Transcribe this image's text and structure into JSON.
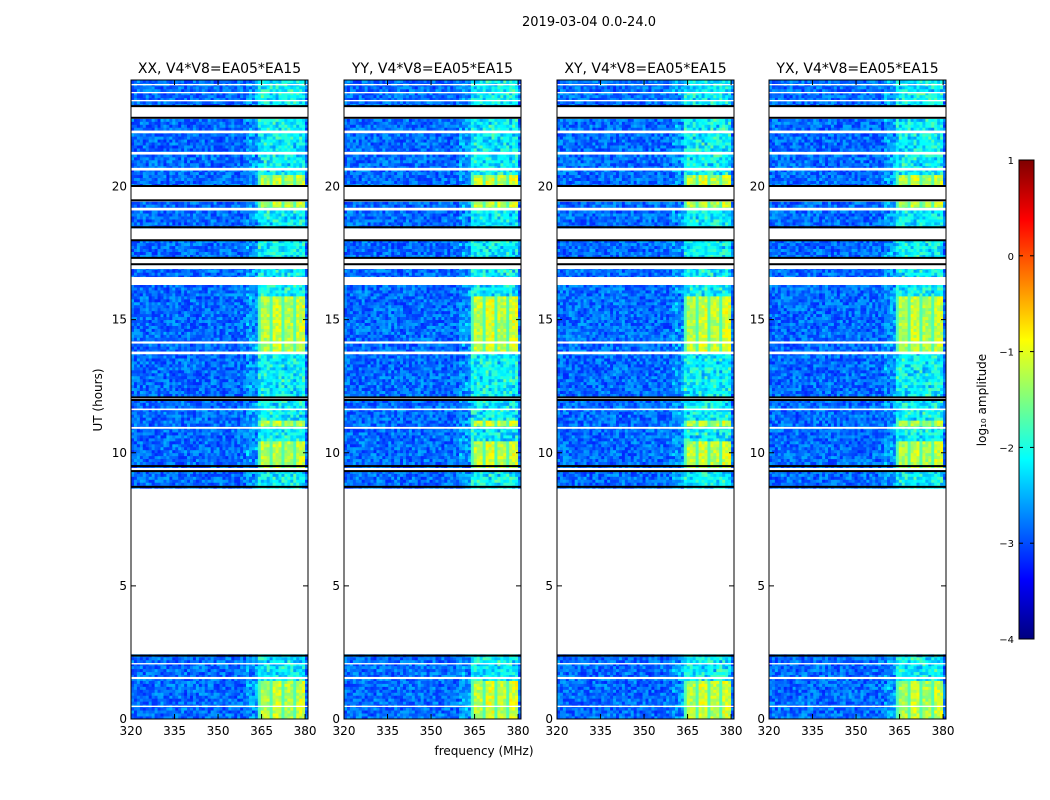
{
  "figure_title": "2019-03-04 0.0-24.0",
  "chart_data": {
    "type": "heatmap",
    "title": "2019-03-04 0.0-24.0",
    "xlabel": "frequency (MHz)",
    "ylabel": "UT (hours)",
    "xlim": [
      320,
      381
    ],
    "ylim": [
      0,
      24
    ],
    "xticks": [
      320,
      335,
      350,
      365,
      380
    ],
    "yticks": [
      0,
      5,
      10,
      15,
      20
    ],
    "panels": [
      {
        "title": "XX, V4*V8=EA05*EA15",
        "strength": 0.85
      },
      {
        "title": "YY, V4*V8=EA05*EA15",
        "strength": 1.0
      },
      {
        "title": "XY, V4*V8=EA05*EA15",
        "strength": 0.95
      },
      {
        "title": "YX, V4*V8=EA05*EA15",
        "strength": 0.8
      }
    ],
    "flagged_hours": [
      [
        2.4,
        8.7
      ],
      [
        9.33,
        9.48
      ],
      [
        12.0,
        12.06
      ],
      [
        17.1,
        17.3
      ],
      [
        18.0,
        18.45
      ],
      [
        19.5,
        20.0
      ],
      [
        22.6,
        23.0
      ]
    ],
    "white_gaps_hours": [
      [
        0.45,
        0.5
      ],
      [
        1.5,
        1.58
      ],
      [
        2.05,
        2.1
      ],
      [
        10.9,
        10.97
      ],
      [
        11.6,
        11.66
      ],
      [
        13.7,
        13.8
      ],
      [
        14.1,
        14.18
      ],
      [
        16.3,
        16.6
      ],
      [
        16.9,
        17.05
      ],
      [
        19.1,
        19.2
      ],
      [
        20.6,
        20.7
      ],
      [
        21.2,
        21.3
      ],
      [
        22.0,
        22.1
      ],
      [
        23.2,
        23.25
      ],
      [
        23.5,
        23.55
      ],
      [
        23.8,
        23.85
      ]
    ],
    "rfi_band_mhz": [
      363.5,
      380
    ],
    "rfi_hours": [
      [
        0.0,
        1.45
      ],
      [
        9.5,
        10.5
      ],
      [
        10.97,
        11.25
      ],
      [
        13.8,
        15.9
      ],
      [
        19.2,
        19.5
      ],
      [
        20.0,
        20.5
      ]
    ],
    "colorbar": {
      "label": "log₁₀ amplitude",
      "min": -4,
      "max": 1,
      "ticks": [
        -4,
        -3,
        -2,
        -1,
        0,
        1
      ],
      "tick_labels": [
        "−4",
        "−3",
        "−2",
        "−1",
        "0",
        "1"
      ],
      "colormap": [
        "#00007f",
        "#0000ff",
        "#007fff",
        "#00ffff",
        "#7fff7f",
        "#ffff00",
        "#ff7f00",
        "#ff0000",
        "#7f0000"
      ]
    }
  },
  "colors": {
    "flag": "#000000",
    "background": "#0033e6",
    "gap": "#ffffff"
  }
}
